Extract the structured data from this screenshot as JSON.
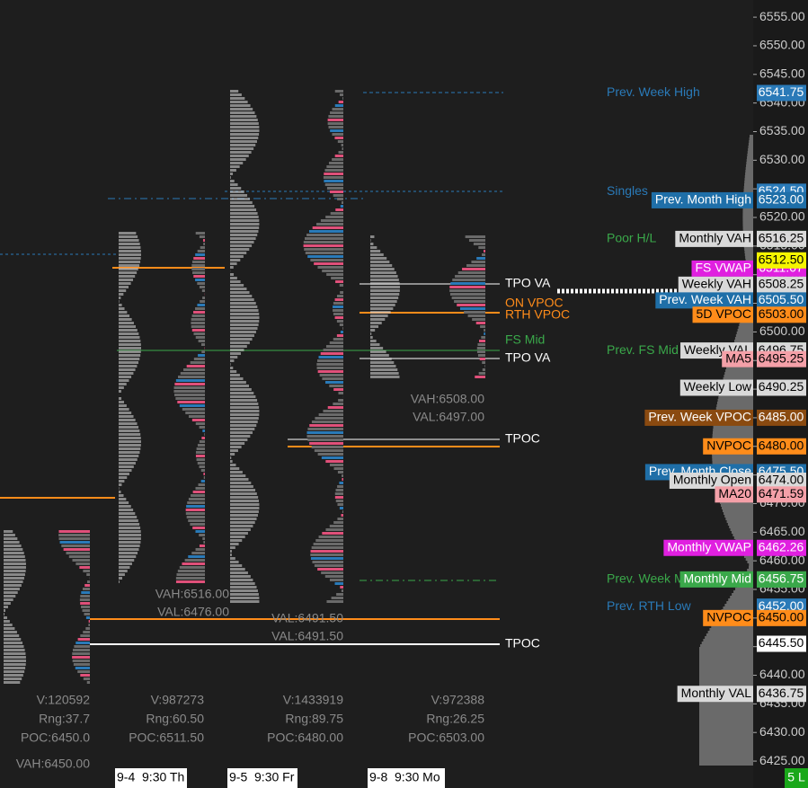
{
  "price_axis": {
    "ylim": [
      6420.3,
      6558.0
    ],
    "ticks": [
      {
        "value": 6555,
        "label": "6555.00"
      },
      {
        "value": 6550,
        "label": "6550.00"
      },
      {
        "value": 6545,
        "label": "6545.00"
      },
      {
        "value": 6540,
        "label": "6540.00"
      },
      {
        "value": 6535,
        "label": "6535.00"
      },
      {
        "value": 6530,
        "label": "6530.00"
      },
      {
        "value": 6525,
        "label": "6525.00"
      },
      {
        "value": 6520,
        "label": "6520.00"
      },
      {
        "value": 6515,
        "label": "6515.00"
      },
      {
        "value": 6510,
        "label": "6510.00"
      },
      {
        "value": 6505,
        "label": "6505.00"
      },
      {
        "value": 6500,
        "label": "6500.00"
      },
      {
        "value": 6495,
        "label": "6495.00"
      },
      {
        "value": 6490,
        "label": "6490.00"
      },
      {
        "value": 6485,
        "label": "6485.00"
      },
      {
        "value": 6480,
        "label": "6480.00"
      },
      {
        "value": 6475,
        "label": "6475.00"
      },
      {
        "value": 6470,
        "label": "6470.00"
      },
      {
        "value": 6465,
        "label": "6465.00"
      },
      {
        "value": 6460,
        "label": "6460.00"
      },
      {
        "value": 6455,
        "label": "6455.00"
      },
      {
        "value": 6450,
        "label": "6450.00"
      },
      {
        "value": 6445,
        "label": "6445.00"
      },
      {
        "value": 6440,
        "label": "6440.00"
      },
      {
        "value": 6435,
        "label": "6435.00"
      },
      {
        "value": 6430,
        "label": "6430.00"
      },
      {
        "value": 6425,
        "label": "6425.00"
      }
    ]
  },
  "levels": [
    {
      "name": "Prev. Week High",
      "style": "text",
      "color": "#2a7ab8",
      "price": 6541.75,
      "price_label": "6541.75"
    },
    {
      "name": "Singles",
      "style": "text",
      "color": "#2a7ab8",
      "price": 6524.5,
      "price_label": "6524.50"
    },
    {
      "name": "Prev. Month High",
      "style": "box",
      "color": "#1f6fa8",
      "price": 6523,
      "price_label": "6523.00"
    },
    {
      "name": "Poor H/L",
      "style": "text",
      "color": "#3aa84a",
      "price": 6516.25,
      "price_label": "6516.25"
    },
    {
      "name": "Monthly VAH",
      "style": "box",
      "color": "#d9d9d9",
      "price": 6516.25,
      "price_label": "6516.25"
    },
    {
      "name": "FS VWAP",
      "style": "box",
      "color": "#e020e0",
      "price": 6511.07,
      "price_label": "6511.07"
    },
    {
      "name": "",
      "style": "box",
      "color": "#f5f500",
      "price": 6512.5,
      "price_label": "6512.50"
    },
    {
      "name": "Weekly VAH",
      "style": "box",
      "color": "#d9d9d9",
      "price": 6508.25,
      "price_label": "6508.25"
    },
    {
      "name": "Prev. Week VAH",
      "style": "box",
      "color": "#1f6fa8",
      "price": 6505.5,
      "price_label": "6505.50"
    },
    {
      "name": "5D VPOC",
      "style": "box",
      "color": "#ff8c1a",
      "price": 6503,
      "price_label": "6503.00"
    },
    {
      "name": "Prev. FS Mid",
      "style": "text",
      "color": "#3aa84a",
      "price": 6496.75,
      "price_label": "6496.75"
    },
    {
      "name": "Weekly VAL",
      "style": "box",
      "color": "#d9d9d9",
      "price": 6496.75,
      "price_label": "6496.75"
    },
    {
      "name": "MA5",
      "style": "box",
      "color": "#f4a0a8",
      "price": 6495.25,
      "price_label": "6495.25"
    },
    {
      "name": "Weekly Low",
      "style": "box",
      "color": "#d9d9d9",
      "price": 6490.25,
      "price_label": "6490.25"
    },
    {
      "name": "Prev. Week VPOC",
      "style": "box",
      "color": "#8a4a10",
      "price": 6485,
      "price_label": "6485.00"
    },
    {
      "name": "NVPOC",
      "style": "box",
      "color": "#ff8c1a",
      "price": 6480,
      "price_label": "6480.00"
    },
    {
      "name": "Prev. Month Close",
      "style": "box",
      "color": "#1f6fa8",
      "price": 6475.5,
      "price_label": "6475.50"
    },
    {
      "name": "Monthly Open",
      "style": "box",
      "color": "#d9d9d9",
      "price": 6474,
      "price_label": "6474.00"
    },
    {
      "name": "MA20",
      "style": "box",
      "color": "#f4a0a8",
      "price": 6471.59,
      "price_label": "6471.59"
    },
    {
      "name": "Monthly VWAP",
      "style": "box",
      "color": "#e020e0",
      "price": 6462.26,
      "price_label": "6462.26"
    },
    {
      "name": "Prev. Week Mid",
      "style": "text",
      "color": "#3aa84a",
      "price": 6456.75,
      "price_label": "6456.75"
    },
    {
      "name": "Monthly Mid",
      "style": "box",
      "color": "#3aa84a",
      "price": 6456.75,
      "price_label": "6456.75"
    },
    {
      "name": "Prev. RTH Low",
      "style": "text",
      "color": "#2a7ab8",
      "price": 6452,
      "price_label": "6452.00"
    },
    {
      "name": "NVPOC",
      "style": "box",
      "color": "#ff8c1a",
      "price": 6450,
      "price_label": "6450.00"
    },
    {
      "name": "",
      "style": "box",
      "color": "#ffffff",
      "price": 6445.5,
      "price_label": "6445.50"
    },
    {
      "name": "Monthly VAL",
      "style": "box",
      "color": "#d9d9d9",
      "price": 6436.75,
      "price_label": "6436.75"
    }
  ],
  "profile_labels": [
    "TPO VA",
    "ON VPOC",
    "RTH VPOC",
    "FS Mid",
    "TPO VA",
    "TPOC",
    "TPOC"
  ],
  "sessions": [
    {
      "vah": "",
      "val": "",
      "v": "V:120592",
      "rng": "Rng:37.7",
      "poc": "POC:6450.0"
    },
    {
      "vah": "VAH:6516.00",
      "val": "VAL:6476.00",
      "v": "V:987273",
      "rng": "Rng:60.50",
      "poc": "POC:6511.50"
    },
    {
      "vah": "",
      "val": "VAL:6491.50",
      "v": "V:1433919",
      "rng": "Rng:89.75",
      "poc": "POC:6480.00"
    },
    {
      "vah": "VAH:6508.00",
      "val": "VAL:6497.00",
      "v": "V:972388",
      "rng": "Rng:26.25",
      "poc": "POC:6503.00"
    }
  ],
  "bottom_left": "VAH:6450.00",
  "dates": [
    "9-4  9:30 Th",
    "9-5  9:30 Fr",
    "9-8  9:30 Mo"
  ],
  "status": "5 L"
}
